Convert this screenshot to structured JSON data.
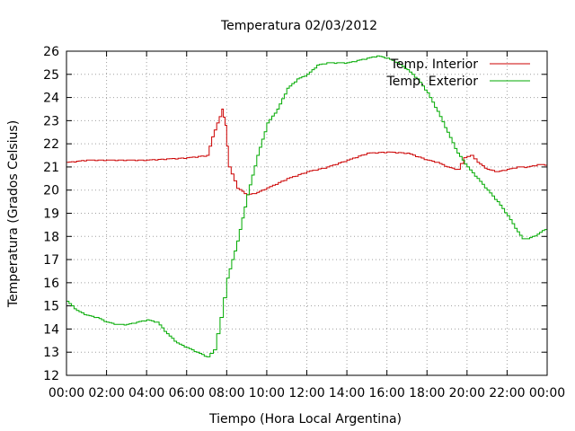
{
  "chart_data": {
    "type": "line",
    "title": "Temperatura 02/03/2012",
    "xlabel": "Tiempo (Hora Local Argentina)",
    "ylabel": "Temperatura (Grados Celsius)",
    "x_tick_labels": [
      "00:00",
      "02:00",
      "04:00",
      "06:00",
      "08:00",
      "10:00",
      "12:00",
      "14:00",
      "16:00",
      "18:00",
      "20:00",
      "22:00",
      "00:00"
    ],
    "y_ticks": [
      12,
      13,
      14,
      15,
      16,
      17,
      18,
      19,
      20,
      21,
      22,
      23,
      24,
      25,
      26
    ],
    "xlim_hours": [
      0,
      24
    ],
    "ylim": [
      12,
      26
    ],
    "grid": true,
    "legend_position": "top-right",
    "series": [
      {
        "name": "Temp. Interior",
        "color": "#cc0000",
        "points": [
          [
            "00:00",
            21.2
          ],
          [
            "00:30",
            21.25
          ],
          [
            "01:00",
            21.3
          ],
          [
            "02:00",
            21.3
          ],
          [
            "03:00",
            21.3
          ],
          [
            "04:00",
            21.3
          ],
          [
            "05:00",
            21.35
          ],
          [
            "06:00",
            21.4
          ],
          [
            "07:00",
            21.5
          ],
          [
            "07:15",
            22.3
          ],
          [
            "07:45",
            23.5
          ],
          [
            "07:55",
            22.8
          ],
          [
            "08:05",
            21.0
          ],
          [
            "08:30",
            20.1
          ],
          [
            "09:00",
            19.8
          ],
          [
            "09:30",
            19.9
          ],
          [
            "10:00",
            20.1
          ],
          [
            "11:00",
            20.5
          ],
          [
            "12:00",
            20.8
          ],
          [
            "13:00",
            21.0
          ],
          [
            "14:00",
            21.3
          ],
          [
            "15:00",
            21.6
          ],
          [
            "16:00",
            21.65
          ],
          [
            "17:00",
            21.6
          ],
          [
            "18:00",
            21.3
          ],
          [
            "18:30",
            21.2
          ],
          [
            "19:00",
            21.0
          ],
          [
            "19:30",
            20.9
          ],
          [
            "19:50",
            21.4
          ],
          [
            "20:10",
            21.5
          ],
          [
            "20:30",
            21.2
          ],
          [
            "21:00",
            20.9
          ],
          [
            "21:30",
            20.8
          ],
          [
            "22:00",
            20.9
          ],
          [
            "22:30",
            21.0
          ],
          [
            "23:00",
            21.0
          ],
          [
            "23:30",
            21.1
          ],
          [
            "24:00",
            21.1
          ]
        ]
      },
      {
        "name": "Temp. Exterior",
        "color": "#00aa00",
        "points": [
          [
            "00:00",
            15.2
          ],
          [
            "00:30",
            14.8
          ],
          [
            "01:00",
            14.6
          ],
          [
            "01:30",
            14.5
          ],
          [
            "02:00",
            14.3
          ],
          [
            "02:30",
            14.2
          ],
          [
            "03:00",
            14.2
          ],
          [
            "03:30",
            14.3
          ],
          [
            "04:00",
            14.4
          ],
          [
            "04:30",
            14.3
          ],
          [
            "05:00",
            13.8
          ],
          [
            "05:30",
            13.4
          ],
          [
            "06:00",
            13.2
          ],
          [
            "06:30",
            13.0
          ],
          [
            "07:00",
            12.8
          ],
          [
            "07:20",
            13.1
          ],
          [
            "07:40",
            14.5
          ],
          [
            "08:00",
            16.2
          ],
          [
            "08:30",
            17.8
          ],
          [
            "09:00",
            19.8
          ],
          [
            "09:30",
            21.5
          ],
          [
            "10:00",
            22.9
          ],
          [
            "10:30",
            23.5
          ],
          [
            "11:00",
            24.4
          ],
          [
            "11:30",
            24.8
          ],
          [
            "12:00",
            25.0
          ],
          [
            "12:30",
            25.4
          ],
          [
            "13:00",
            25.5
          ],
          [
            "13:30",
            25.5
          ],
          [
            "14:00",
            25.5
          ],
          [
            "14:30",
            25.6
          ],
          [
            "15:00",
            25.7
          ],
          [
            "15:30",
            25.8
          ],
          [
            "16:00",
            25.7
          ],
          [
            "16:30",
            25.5
          ],
          [
            "17:00",
            25.2
          ],
          [
            "17:30",
            24.8
          ],
          [
            "18:00",
            24.2
          ],
          [
            "18:30",
            23.4
          ],
          [
            "19:00",
            22.5
          ],
          [
            "19:30",
            21.6
          ],
          [
            "20:00",
            21.0
          ],
          [
            "20:30",
            20.5
          ],
          [
            "21:00",
            20.0
          ],
          [
            "21:30",
            19.5
          ],
          [
            "22:00",
            18.9
          ],
          [
            "22:30",
            18.2
          ],
          [
            "22:45",
            17.9
          ],
          [
            "23:00",
            17.9
          ],
          [
            "23:30",
            18.1
          ],
          [
            "24:00",
            18.4
          ]
        ]
      }
    ]
  }
}
